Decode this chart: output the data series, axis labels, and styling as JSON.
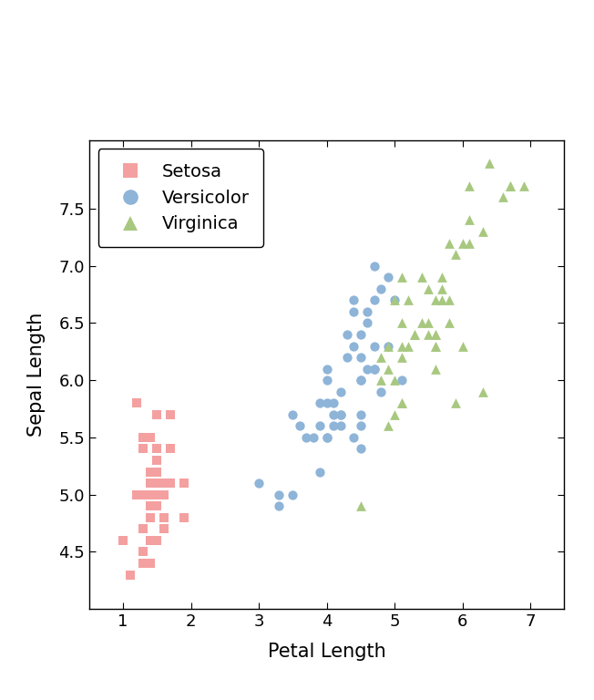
{
  "title": "",
  "xlabel": "Petal Length",
  "ylabel": "Sepal Length",
  "xlim": [
    0.5,
    7.5
  ],
  "ylim": [
    4.0,
    8.1
  ],
  "xticks": [
    1,
    2,
    3,
    4,
    5,
    6,
    7
  ],
  "yticks": [
    4.5,
    5.0,
    5.5,
    6.0,
    6.5,
    7.0,
    7.5
  ],
  "setosa_color": "#F4A0A0",
  "versicolor_color": "#8EB4D8",
  "virginica_color": "#A8C880",
  "legend_labels": [
    "Setosa",
    "Versicolor",
    "Virginica"
  ],
  "setosa_petal_length": [
    1.4,
    1.4,
    1.3,
    1.5,
    1.4,
    1.7,
    1.4,
    1.5,
    1.4,
    1.5,
    1.5,
    1.6,
    1.4,
    1.1,
    1.2,
    1.5,
    1.3,
    1.4,
    1.7,
    1.5,
    1.7,
    1.5,
    1.0,
    1.7,
    1.9,
    1.6,
    1.6,
    1.5,
    1.4,
    1.6,
    1.6,
    1.5,
    1.5,
    1.4,
    1.5,
    1.2,
    1.3,
    1.4,
    1.3,
    1.5,
    1.3,
    1.3,
    1.3,
    1.6,
    1.9,
    1.4,
    1.6,
    1.4,
    1.5,
    1.4
  ],
  "setosa_sepal_length": [
    5.1,
    4.9,
    4.7,
    4.6,
    5.0,
    5.4,
    4.6,
    5.0,
    4.4,
    4.9,
    5.4,
    4.8,
    4.8,
    4.3,
    5.8,
    5.7,
    5.4,
    5.1,
    5.7,
    5.1,
    5.4,
    5.1,
    4.6,
    5.1,
    4.8,
    5.0,
    5.0,
    5.2,
    5.2,
    4.7,
    4.8,
    5.4,
    5.2,
    5.5,
    4.9,
    5.0,
    5.5,
    4.9,
    4.4,
    5.1,
    5.0,
    4.5,
    4.4,
    5.0,
    5.1,
    4.8,
    5.1,
    4.6,
    5.3,
    5.0
  ],
  "versicolor_petal_length": [
    4.7,
    4.5,
    4.9,
    4.0,
    4.6,
    4.5,
    4.7,
    3.3,
    4.6,
    3.9,
    3.5,
    4.2,
    4.0,
    4.7,
    3.6,
    4.4,
    4.5,
    4.1,
    4.5,
    3.9,
    4.8,
    4.0,
    4.9,
    4.7,
    4.3,
    4.4,
    4.8,
    5.0,
    4.5,
    3.5,
    3.8,
    3.7,
    3.9,
    5.1,
    4.5,
    4.5,
    4.7,
    4.4,
    4.1,
    4.0,
    4.4,
    4.6,
    4.0,
    3.3,
    4.2,
    4.2,
    4.2,
    4.3,
    3.0,
    4.1
  ],
  "versicolor_sepal_length": [
    7.0,
    6.4,
    6.9,
    5.5,
    6.5,
    5.7,
    6.3,
    4.9,
    6.6,
    5.2,
    5.0,
    5.9,
    6.0,
    6.1,
    5.6,
    6.7,
    5.6,
    5.8,
    6.2,
    5.6,
    5.9,
    6.1,
    6.3,
    6.1,
    6.4,
    6.6,
    6.8,
    6.7,
    6.0,
    5.7,
    5.5,
    5.5,
    5.8,
    6.0,
    5.4,
    6.0,
    6.7,
    6.3,
    5.6,
    5.5,
    5.5,
    6.1,
    5.8,
    5.0,
    5.6,
    5.7,
    5.7,
    6.2,
    5.1,
    5.7
  ],
  "virginica_petal_length": [
    6.0,
    5.1,
    5.9,
    5.6,
    5.8,
    6.6,
    4.5,
    6.3,
    5.8,
    6.1,
    5.1,
    5.3,
    5.5,
    5.0,
    5.1,
    5.3,
    5.5,
    6.7,
    6.9,
    5.0,
    5.7,
    4.9,
    6.7,
    4.9,
    5.7,
    6.0,
    4.8,
    4.9,
    5.6,
    5.8,
    6.1,
    6.4,
    5.6,
    5.1,
    5.6,
    6.1,
    5.6,
    5.5,
    4.8,
    5.4,
    5.6,
    5.1,
    5.9,
    5.7,
    5.2,
    5.0,
    5.2,
    5.4,
    5.1,
    6.3
  ],
  "virginica_sepal_length": [
    6.3,
    5.8,
    7.1,
    6.3,
    6.5,
    7.6,
    4.9,
    7.3,
    6.7,
    7.2,
    6.5,
    6.4,
    6.8,
    5.7,
    5.8,
    6.4,
    6.5,
    7.7,
    7.7,
    6.0,
    6.9,
    5.6,
    7.7,
    6.3,
    6.7,
    7.2,
    6.2,
    6.1,
    6.4,
    7.2,
    7.4,
    7.9,
    6.4,
    6.3,
    6.1,
    7.7,
    6.3,
    6.4,
    6.0,
    6.9,
    6.7,
    6.9,
    5.8,
    6.8,
    6.7,
    6.7,
    6.3,
    6.5,
    6.2,
    5.9
  ]
}
